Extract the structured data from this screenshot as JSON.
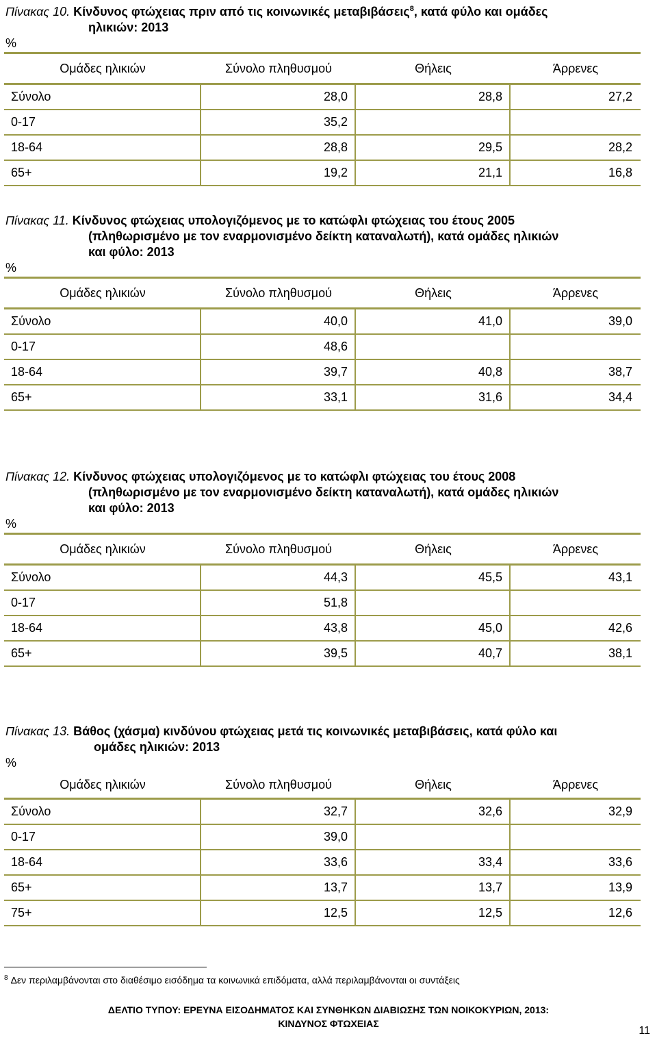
{
  "headers": [
    "Ομάδες ηλικιών",
    "Σύνολο πληθυσμού",
    "Θήλεις",
    "Άρρενες"
  ],
  "unit": "%",
  "tables": [
    {
      "label": "Πίνακας 10.",
      "title_line1": " Κίνδυνος φτώχειας πριν από  τις κοινωνικές μεταβιβάσεις",
      "footnote_ref": "8",
      "title_line1_tail": ", κατά φύλο και ομάδες",
      "title_line2": "ηλικιών: 2013",
      "rows": [
        [
          "Σύνολο",
          "28,0",
          "28,8",
          "27,2"
        ],
        [
          "0-17",
          "35,2",
          "",
          ""
        ],
        [
          "18-64",
          "28,8",
          "29,5",
          "28,2"
        ],
        [
          "65+",
          "19,2",
          "21,1",
          "16,8"
        ]
      ]
    },
    {
      "label": "Πίνακας 11.",
      "title_line1": " Κίνδυνος φτώχειας υπολογιζόμενος με το κατώφλι φτώχειας του έτους 2005",
      "title_line2": "(πληθωρισμένο  με τον εναρμονισμένο δείκτη καταναλωτή), κατά ομάδες ηλικιών",
      "title_line3": "και φύλο: 2013",
      "rows": [
        [
          "Σύνολο",
          "40,0",
          "41,0",
          "39,0"
        ],
        [
          "0-17",
          "48,6",
          "",
          ""
        ],
        [
          "18-64",
          "39,7",
          "40,8",
          "38,7"
        ],
        [
          "65+",
          "33,1",
          "31,6",
          "34,4"
        ]
      ]
    },
    {
      "label": "Πίνακας 12.",
      "title_line1": " Κίνδυνος φτώχειας υπολογιζόμενος με το κατώφλι φτώχειας του έτους 2008",
      "title_line2": "(πληθωρισμένο  με τον εναρμονισμένο δείκτη καταναλωτή), κατά ομάδες ηλικιών",
      "title_line3": "και φύλο: 2013",
      "rows": [
        [
          "Σύνολο",
          "44,3",
          "45,5",
          "43,1"
        ],
        [
          "0-17",
          "51,8",
          "",
          ""
        ],
        [
          "18-64",
          "43,8",
          "45,0",
          "42,6"
        ],
        [
          "65+",
          "39,5",
          "40,7",
          "38,1"
        ]
      ]
    },
    {
      "label": "Πίνακας 13.",
      "title_line1": " Βάθος (χάσμα) κινδύνου φτώχειας μετά τις κοινωνικές μεταβιβάσεις, κατά φύλο και",
      "title_line2": "ομάδες ηλικιών: 2013",
      "rows": [
        [
          "Σύνολο",
          "32,7",
          "32,6",
          "32,9"
        ],
        [
          "0-17",
          "39,0",
          "",
          ""
        ],
        [
          "18-64",
          "33,6",
          "33,4",
          "33,6"
        ],
        [
          "65+",
          "13,7",
          "13,7",
          "13,9"
        ],
        [
          "75+",
          "12,5",
          "12,5",
          "12,6"
        ]
      ]
    }
  ],
  "footnote": {
    "number": "8",
    "text": "Δεν περιλαμβάνονται στο διαθέσιμο εισόδημα τα κοινωνικά επιδόματα, αλλά περιλαμβάνονται οι  συντάξεις"
  },
  "footer": {
    "line1": "ΔΕΛΤΙΟ ΤΥΠΟΥ:  ΕΡΕΥΝΑ ΕΙΣΟΔΗΜΑΤΟΣ ΚΑΙ ΣΥΝΘΗΚΩΝ ΔΙΑΒΙΩΣΗΣ ΤΩΝ ΝΟΙΚΟΚΥΡΙΩΝ, 2013:",
    "line2": "ΚΙΝΔΥΝΟΣ ΦΤΩΧΕΙΑΣ"
  },
  "page_number": "11"
}
